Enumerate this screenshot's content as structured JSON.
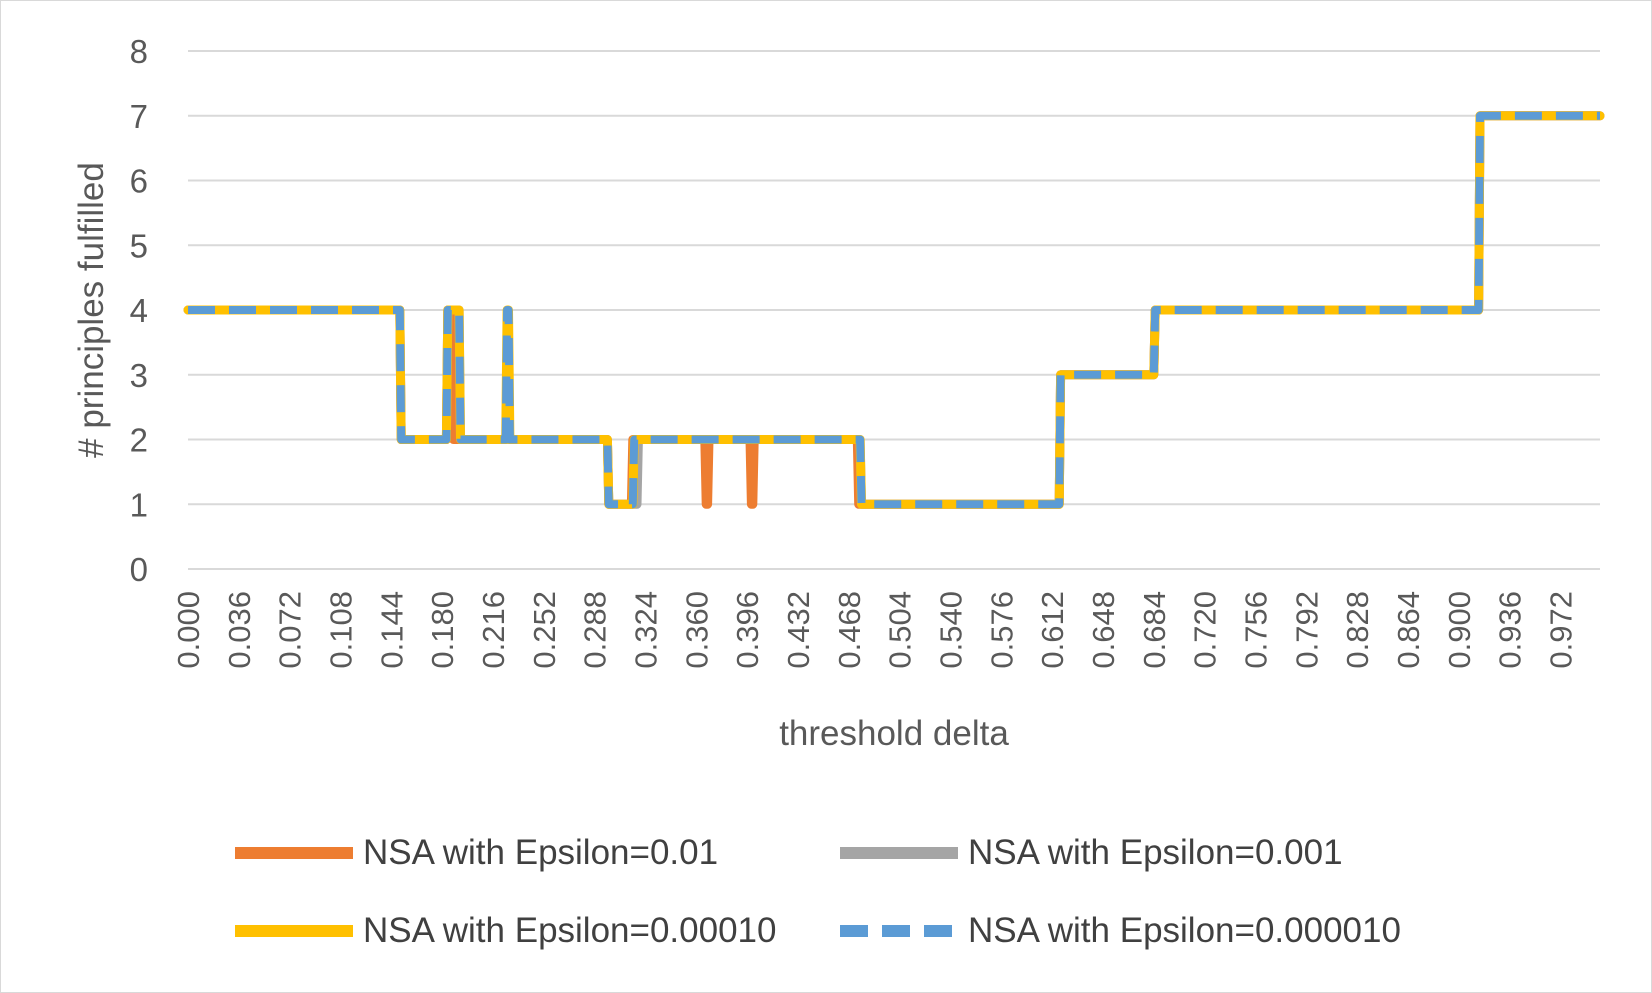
{
  "chart_data": {
    "type": "line",
    "xlabel": "threshold delta",
    "ylabel": "# principles fulfilled",
    "ylim": [
      0,
      8
    ],
    "yticks": [
      "0",
      "1",
      "2",
      "3",
      "4",
      "5",
      "6",
      "7",
      "8"
    ],
    "xlim": [
      0,
      1.0
    ],
    "xtick_labels": [
      "0.000",
      "0.036",
      "0.072",
      "0.108",
      "0.144",
      "0.180",
      "0.216",
      "0.252",
      "0.288",
      "0.324",
      "0.360",
      "0.396",
      "0.432",
      "0.468",
      "0.504",
      "0.540",
      "0.576",
      "0.612",
      "0.648",
      "0.684",
      "0.720",
      "0.756",
      "0.792",
      "0.828",
      "0.864",
      "0.900",
      "0.936",
      "0.972"
    ],
    "grid": "horizontal",
    "legend_position": "bottom",
    "series": [
      {
        "name": "NSA with Epsilon=0.01",
        "color": "#ED7D31",
        "style": "solid",
        "x": [
          0.0,
          0.15,
          0.151,
          0.183,
          0.184,
          0.187,
          0.188,
          0.219,
          0.22,
          0.297,
          0.298,
          0.314,
          0.315,
          0.366,
          0.367,
          0.368,
          0.369,
          0.398,
          0.399,
          0.4,
          0.401,
          0.474,
          0.475,
          0.617,
          0.618,
          0.684,
          0.685,
          0.914,
          0.915,
          1.0
        ],
        "values": [
          4,
          4,
          2,
          2,
          4,
          4,
          2,
          2,
          2,
          2,
          1,
          1,
          2,
          2,
          1,
          1,
          2,
          2,
          1,
          1,
          2,
          2,
          1,
          1,
          3,
          3,
          4,
          4,
          7,
          7
        ]
      },
      {
        "name": "NSA with Epsilon=0.001",
        "color": "#A5A5A5",
        "style": "solid",
        "x": [
          0.0,
          0.15,
          0.151,
          0.183,
          0.184,
          0.192,
          0.193,
          0.226,
          0.227,
          0.297,
          0.298,
          0.318,
          0.319,
          0.476,
          0.477,
          0.617,
          0.618,
          0.684,
          0.685,
          0.914,
          0.915,
          1.0
        ],
        "values": [
          4,
          4,
          2,
          2,
          4,
          4,
          2,
          2,
          2,
          2,
          1,
          1,
          2,
          2,
          1,
          1,
          3,
          3,
          4,
          4,
          7,
          7
        ]
      },
      {
        "name": "NSA with Epsilon=0.00010",
        "color": "#FFC000",
        "style": "solid",
        "x": [
          0.0,
          0.15,
          0.151,
          0.183,
          0.184,
          0.192,
          0.193,
          0.225,
          0.226,
          0.227,
          0.228,
          0.297,
          0.298,
          0.315,
          0.316,
          0.476,
          0.477,
          0.617,
          0.618,
          0.684,
          0.685,
          0.914,
          0.915,
          1.0
        ],
        "values": [
          4,
          4,
          2,
          2,
          4,
          4,
          2,
          2,
          4,
          4,
          2,
          2,
          1,
          1,
          2,
          2,
          1,
          1,
          3,
          3,
          4,
          4,
          7,
          7
        ]
      },
      {
        "name": "NSA with Epsilon=0.000010",
        "color": "#5B9BD5",
        "style": "dashed",
        "x": [
          0.0,
          0.15,
          0.151,
          0.183,
          0.184,
          0.192,
          0.193,
          0.225,
          0.226,
          0.227,
          0.228,
          0.297,
          0.298,
          0.315,
          0.316,
          0.476,
          0.477,
          0.617,
          0.618,
          0.684,
          0.685,
          0.914,
          0.915,
          1.0
        ],
        "values": [
          4,
          4,
          2,
          2,
          4,
          4,
          2,
          2,
          4,
          4,
          2,
          2,
          1,
          1,
          2,
          2,
          1,
          1,
          3,
          3,
          4,
          4,
          7,
          7
        ]
      }
    ]
  }
}
